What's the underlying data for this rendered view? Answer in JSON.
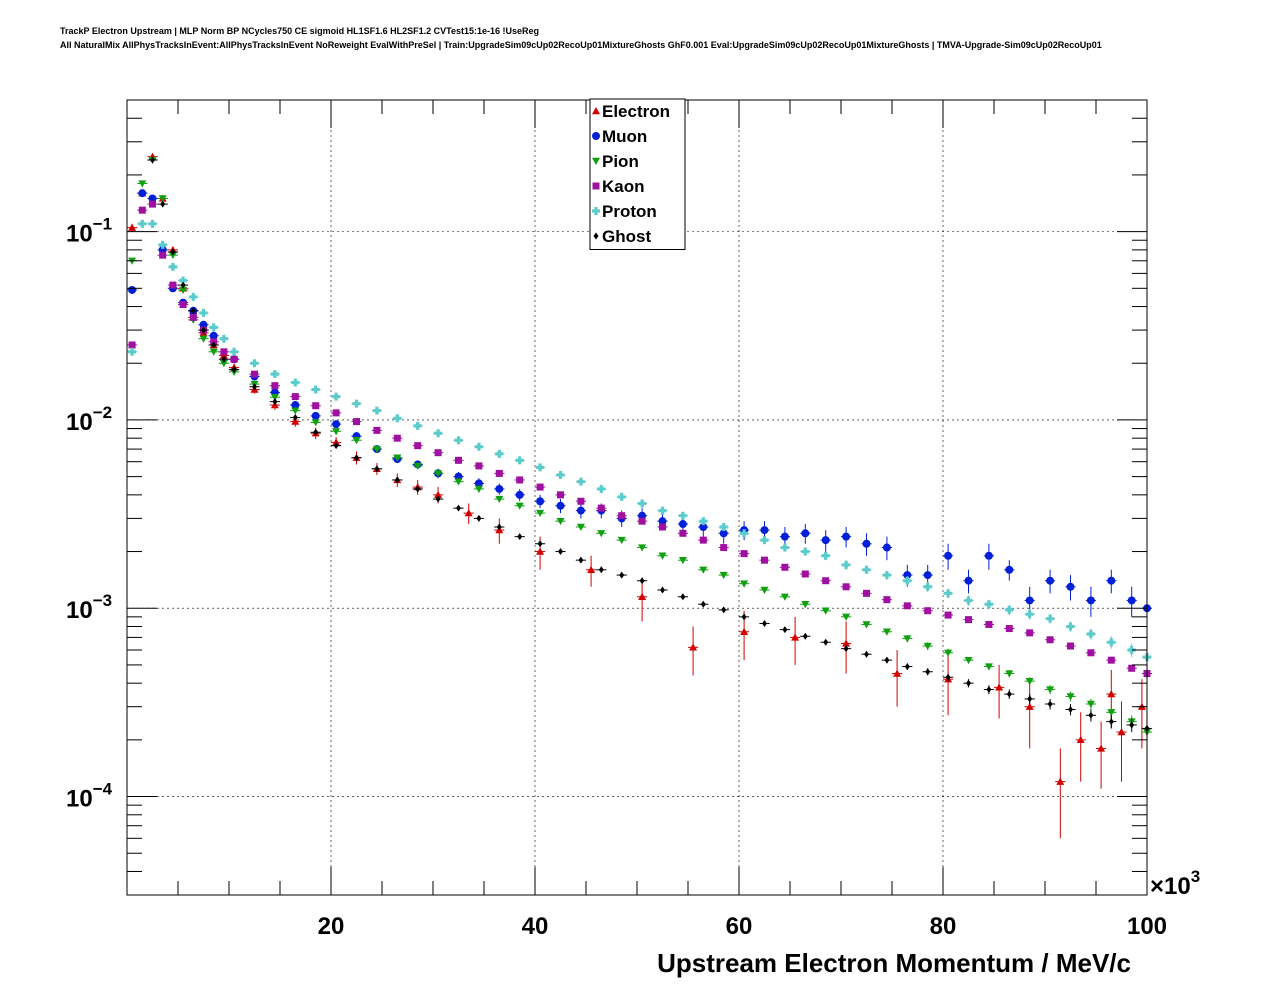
{
  "title_line_1": "TrackP Electron Upstream | MLP Norm BP NCycles750 CE sigmoid HL1SF1.6 HL2SF1.2 CVTest15:1e-16 !UseReg",
  "title_line_2": "All NaturalMix AllPhysTracksInEvent:AllPhysTracksInEvent NoReweight EvalWithPreSel | Train:UpgradeSim09cUp02RecoUp01MixtureGhosts GhF0.001 Eval:UpgradeSim09cUp02RecoUp01MixtureGhosts | TMVA-Upgrade-Sim09cUp02RecoUp01",
  "chart_data": {
    "type": "scatter",
    "xlabel": "Upstream Electron Momentum / MeV/c",
    "x_multiplier_label": "×10",
    "x_multiplier_exp": "3",
    "xlim": [
      0,
      100
    ],
    "ylim": [
      3e-05,
      0.5
    ],
    "yscale": "log",
    "grid": true,
    "legend_position": "top-center",
    "x_tick_labels": [
      "20",
      "40",
      "60",
      "80",
      "100"
    ],
    "x_ticks": [
      20,
      40,
      60,
      80,
      100
    ],
    "y_ticks": [
      {
        "value": 0.1,
        "base": "10",
        "exp": "−1"
      },
      {
        "value": 0.01,
        "base": "10",
        "exp": "−2"
      },
      {
        "value": 0.001,
        "base": "10",
        "exp": "−3"
      },
      {
        "value": 0.0001,
        "base": "10",
        "exp": "−4"
      }
    ],
    "series": [
      {
        "name": "Electron",
        "color": "#d40000",
        "marker": "triangle-up",
        "x": [
          0.5,
          1.5,
          2.5,
          3.5,
          4.5,
          5.5,
          6.5,
          7.5,
          8.5,
          9.5,
          10.5,
          12.5,
          14.5,
          16.5,
          18.5,
          20.5,
          22.5,
          24.5,
          26.5,
          28.5,
          30.5,
          33.5,
          36.5,
          40.5,
          45.5,
          50.5,
          55.5,
          60.5,
          65.5,
          70.5,
          75.5,
          80.5,
          85.5,
          88.5,
          91.5,
          93.5,
          95.5,
          96.5,
          97.5,
          99.5
        ],
        "y": [
          0.105,
          0.16,
          0.25,
          0.15,
          0.08,
          0.05,
          0.038,
          0.029,
          0.025,
          0.022,
          0.019,
          0.0145,
          0.012,
          0.0098,
          0.0085,
          0.0076,
          0.0063,
          0.0055,
          0.0048,
          0.0044,
          0.004,
          0.0032,
          0.0026,
          0.002,
          0.0016,
          0.00115,
          0.00062,
          0.00075,
          0.0007,
          0.00065,
          0.00045,
          0.00042,
          0.00038,
          0.0003,
          0.00012,
          0.0002,
          0.00018,
          0.00035,
          0.00022,
          0.0003
        ],
        "err": [
          0.005,
          0.006,
          0.01,
          0.006,
          0.003,
          0.002,
          0.0015,
          0.001,
          0.001,
          0.001,
          0.0008,
          0.0007,
          0.0007,
          0.0006,
          0.0006,
          0.0005,
          0.0005,
          0.0004,
          0.0004,
          0.0004,
          0.0004,
          0.0004,
          0.0004,
          0.0004,
          0.0003,
          0.0003,
          0.00018,
          0.00022,
          0.0002,
          0.0002,
          0.00015,
          0.00015,
          0.00012,
          0.00012,
          6e-05,
          8e-05,
          7e-05,
          0.00012,
          0.0001,
          0.00012
        ]
      },
      {
        "name": "Muon",
        "color": "#0020d8",
        "marker": "circle",
        "x": [
          0.5,
          1.5,
          2.5,
          3.5,
          4.5,
          5.5,
          6.5,
          7.5,
          8.5,
          10.5,
          12.5,
          14.5,
          16.5,
          18.5,
          20.5,
          22.5,
          24.5,
          26.5,
          28.5,
          30.5,
          32.5,
          34.5,
          36.5,
          38.5,
          40.5,
          42.5,
          44.5,
          46.5,
          48.5,
          50.5,
          52.5,
          54.5,
          56.5,
          58.5,
          60.5,
          62.5,
          64.5,
          66.5,
          68.5,
          70.5,
          72.5,
          74.5,
          76.5,
          78.5,
          80.5,
          82.5,
          84.5,
          86.5,
          88.5,
          90.5,
          92.5,
          94.5,
          96.5,
          98.5,
          100
        ],
        "y": [
          0.049,
          0.16,
          0.15,
          0.08,
          0.05,
          0.042,
          0.038,
          0.032,
          0.028,
          0.021,
          0.017,
          0.014,
          0.012,
          0.0105,
          0.0095,
          0.0082,
          0.007,
          0.0062,
          0.0058,
          0.0052,
          0.005,
          0.0046,
          0.0043,
          0.004,
          0.0037,
          0.0035,
          0.0033,
          0.0033,
          0.003,
          0.0031,
          0.0029,
          0.0028,
          0.0027,
          0.0025,
          0.0026,
          0.0026,
          0.0024,
          0.0025,
          0.0023,
          0.0024,
          0.0022,
          0.0021,
          0.0015,
          0.0015,
          0.0019,
          0.0014,
          0.0019,
          0.0016,
          0.0011,
          0.0014,
          0.0013,
          0.0011,
          0.0014,
          0.0011,
          0.001
        ],
        "err": [
          0.002,
          0.005,
          0.005,
          0.003,
          0.002,
          0.0015,
          0.0012,
          0.001,
          0.001,
          0.0008,
          0.0007,
          0.0006,
          0.0005,
          0.0005,
          0.0004,
          0.0004,
          0.0003,
          0.0003,
          0.0003,
          0.0003,
          0.0003,
          0.0003,
          0.0003,
          0.0003,
          0.0003,
          0.0003,
          0.0003,
          0.0003,
          0.0003,
          0.0003,
          0.0003,
          0.0003,
          0.0003,
          0.0003,
          0.0003,
          0.0003,
          0.0003,
          0.0003,
          0.0003,
          0.0003,
          0.0003,
          0.0003,
          0.0002,
          0.0002,
          0.0003,
          0.0002,
          0.0003,
          0.0002,
          0.0002,
          0.0002,
          0.0002,
          0.0002,
          0.0002,
          0.0002,
          0.0002
        ]
      },
      {
        "name": "Pion",
        "color": "#10a010",
        "marker": "triangle-down",
        "x": [
          0.5,
          1.5,
          2.5,
          3.5,
          4.5,
          5.5,
          6.5,
          7.5,
          8.5,
          9.5,
          10.5,
          12.5,
          14.5,
          16.5,
          18.5,
          20.5,
          22.5,
          24.5,
          26.5,
          28.5,
          30.5,
          32.5,
          34.5,
          36.5,
          38.5,
          40.5,
          42.5,
          44.5,
          46.5,
          48.5,
          50.5,
          52.5,
          54.5,
          56.5,
          58.5,
          60.5,
          62.5,
          64.5,
          66.5,
          68.5,
          70.5,
          72.5,
          74.5,
          76.5,
          78.5,
          80.5,
          82.5,
          84.5,
          86.5,
          88.5,
          90.5,
          92.5,
          94.5,
          96.5,
          98.5,
          100
        ],
        "y": [
          0.07,
          0.18,
          0.24,
          0.15,
          0.075,
          0.049,
          0.034,
          0.027,
          0.023,
          0.02,
          0.018,
          0.0155,
          0.0132,
          0.0112,
          0.0097,
          0.0087,
          0.0078,
          0.007,
          0.0063,
          0.0057,
          0.0052,
          0.0047,
          0.0043,
          0.0038,
          0.0035,
          0.0032,
          0.0029,
          0.0027,
          0.0025,
          0.0023,
          0.0021,
          0.0019,
          0.0018,
          0.0016,
          0.0015,
          0.00135,
          0.00125,
          0.00115,
          0.00105,
          0.00097,
          0.0009,
          0.00082,
          0.00075,
          0.00069,
          0.00063,
          0.00058,
          0.00053,
          0.00049,
          0.00045,
          0.00041,
          0.00037,
          0.00034,
          0.00031,
          0.00028,
          0.00025,
          0.00022
        ],
        "err": [
          0.002,
          0.004,
          0.005,
          0.003,
          0.002,
          0.001,
          0.0008,
          0.0006,
          0.0005,
          0.0004,
          0.0004,
          0.0003,
          0.0003,
          0.0002,
          0.0002,
          0.0002,
          0.0002,
          0.0001,
          0.0001,
          0.0001,
          0.0001,
          0.0001,
          0.0001,
          0.0001,
          0.0001,
          0.0001,
          0.0001,
          8e-05,
          8e-05,
          7e-05,
          7e-05,
          6e-05,
          6e-05,
          5e-05,
          5e-05,
          5e-05,
          4e-05,
          4e-05,
          4e-05,
          4e-05,
          3e-05,
          3e-05,
          3e-05,
          3e-05,
          3e-05,
          3e-05,
          2e-05,
          2e-05,
          2e-05,
          2e-05,
          2e-05,
          2e-05,
          2e-05,
          2e-05,
          2e-05,
          2e-05
        ]
      },
      {
        "name": "Kaon",
        "color": "#a010a0",
        "marker": "square",
        "x": [
          0.5,
          1.5,
          2.5,
          3.5,
          4.5,
          5.5,
          6.5,
          7.5,
          8.5,
          9.5,
          10.5,
          12.5,
          14.5,
          16.5,
          18.5,
          20.5,
          22.5,
          24.5,
          26.5,
          28.5,
          30.5,
          32.5,
          34.5,
          36.5,
          38.5,
          40.5,
          42.5,
          44.5,
          46.5,
          48.5,
          50.5,
          52.5,
          54.5,
          56.5,
          58.5,
          60.5,
          62.5,
          64.5,
          66.5,
          68.5,
          70.5,
          72.5,
          74.5,
          76.5,
          78.5,
          80.5,
          82.5,
          84.5,
          86.5,
          88.5,
          90.5,
          92.5,
          94.5,
          96.5,
          98.5,
          100
        ],
        "y": [
          0.025,
          0.13,
          0.14,
          0.075,
          0.052,
          0.041,
          0.035,
          0.03,
          0.026,
          0.023,
          0.021,
          0.0175,
          0.0152,
          0.0133,
          0.0119,
          0.0109,
          0.0098,
          0.0088,
          0.008,
          0.0073,
          0.0067,
          0.0061,
          0.0057,
          0.0052,
          0.0048,
          0.0044,
          0.004,
          0.0037,
          0.0034,
          0.0031,
          0.0029,
          0.0027,
          0.0025,
          0.0023,
          0.0021,
          0.00195,
          0.0018,
          0.00165,
          0.00152,
          0.0014,
          0.0013,
          0.0012,
          0.00111,
          0.00103,
          0.00097,
          0.00092,
          0.00087,
          0.00082,
          0.00078,
          0.00074,
          0.00068,
          0.00063,
          0.00058,
          0.00053,
          0.00048,
          0.00045
        ],
        "err": [
          0.001,
          0.003,
          0.003,
          0.002,
          0.001,
          0.0008,
          0.0006,
          0.0005,
          0.0004,
          0.0004,
          0.0003,
          0.0003,
          0.0002,
          0.0002,
          0.0002,
          0.0002,
          0.0001,
          0.0001,
          0.0001,
          0.0001,
          0.0001,
          0.0001,
          0.0001,
          0.0001,
          0.0001,
          8e-05,
          8e-05,
          7e-05,
          6e-05,
          6e-05,
          5e-05,
          5e-05,
          5e-05,
          4e-05,
          4e-05,
          4e-05,
          4e-05,
          3e-05,
          3e-05,
          3e-05,
          3e-05,
          3e-05,
          3e-05,
          2e-05,
          2e-05,
          2e-05,
          2e-05,
          2e-05,
          2e-05,
          2e-05,
          2e-05,
          2e-05,
          2e-05,
          2e-05,
          2e-05,
          2e-05
        ]
      },
      {
        "name": "Proton",
        "color": "#5ccbcb",
        "marker": "cross",
        "x": [
          0.5,
          1.5,
          2.5,
          3.5,
          4.5,
          5.5,
          6.5,
          7.5,
          8.5,
          9.5,
          10.5,
          12.5,
          14.5,
          16.5,
          18.5,
          20.5,
          22.5,
          24.5,
          26.5,
          28.5,
          30.5,
          32.5,
          34.5,
          36.5,
          38.5,
          40.5,
          42.5,
          44.5,
          46.5,
          48.5,
          50.5,
          52.5,
          54.5,
          56.5,
          58.5,
          60.5,
          62.5,
          64.5,
          66.5,
          68.5,
          70.5,
          72.5,
          74.5,
          76.5,
          78.5,
          80.5,
          82.5,
          84.5,
          86.5,
          88.5,
          90.5,
          92.5,
          94.5,
          96.5,
          98.5,
          100
        ],
        "y": [
          0.023,
          0.11,
          0.11,
          0.085,
          0.065,
          0.055,
          0.045,
          0.037,
          0.031,
          0.027,
          0.023,
          0.02,
          0.0175,
          0.0158,
          0.0145,
          0.0133,
          0.0122,
          0.0112,
          0.0102,
          0.0093,
          0.0085,
          0.0078,
          0.0072,
          0.0066,
          0.0061,
          0.0056,
          0.0051,
          0.0047,
          0.0043,
          0.0039,
          0.0036,
          0.0033,
          0.0031,
          0.0029,
          0.0027,
          0.0025,
          0.0023,
          0.0021,
          0.002,
          0.0019,
          0.0017,
          0.0016,
          0.0015,
          0.0014,
          0.0013,
          0.0012,
          0.0011,
          0.00105,
          0.00098,
          0.00093,
          0.00088,
          0.0008,
          0.00073,
          0.00066,
          0.0006,
          0.00055
        ],
        "err": [
          0.001,
          0.003,
          0.003,
          0.002,
          0.001,
          0.0008,
          0.0006,
          0.0005,
          0.0004,
          0.0004,
          0.0003,
          0.0003,
          0.0002,
          0.0002,
          0.0002,
          0.0002,
          0.0001,
          0.0001,
          0.0001,
          0.0001,
          0.0001,
          0.0001,
          0.0001,
          0.0001,
          0.0001,
          0.0001,
          0.0001,
          0.0001,
          0.0001,
          0.0001,
          0.0001,
          0.0001,
          0.0001,
          0.0001,
          0.0001,
          0.0001,
          0.0001,
          0.0001,
          0.0001,
          0.0001,
          0.0001,
          8e-05,
          8e-05,
          8e-05,
          8e-05,
          7e-05,
          7e-05,
          6e-05,
          6e-05,
          6e-05,
          5e-05,
          5e-05,
          5e-05,
          5e-05,
          5e-05,
          5e-05
        ]
      },
      {
        "name": "Ghost",
        "color": "#000000",
        "marker": "diamond",
        "x": [
          2.5,
          3.5,
          4.5,
          5.5,
          6.5,
          7.5,
          8.5,
          9.5,
          10.5,
          12.5,
          14.5,
          16.5,
          18.5,
          20.5,
          22.5,
          24.5,
          26.5,
          28.5,
          30.5,
          32.5,
          34.5,
          36.5,
          38.5,
          40.5,
          42.5,
          44.5,
          46.5,
          48.5,
          50.5,
          52.5,
          54.5,
          56.5,
          58.5,
          60.5,
          62.5,
          64.5,
          66.5,
          68.5,
          70.5,
          72.5,
          74.5,
          76.5,
          78.5,
          80.5,
          82.5,
          84.5,
          86.5,
          88.5,
          90.5,
          92.5,
          94.5,
          96.5,
          98.5,
          100
        ],
        "y": [
          0.24,
          0.14,
          0.078,
          0.052,
          0.038,
          0.03,
          0.025,
          0.021,
          0.0185,
          0.015,
          0.0125,
          0.0103,
          0.0086,
          0.0073,
          0.0063,
          0.0055,
          0.0048,
          0.0043,
          0.0038,
          0.0034,
          0.003,
          0.0027,
          0.0024,
          0.0022,
          0.002,
          0.0018,
          0.0016,
          0.0015,
          0.0014,
          0.00125,
          0.00115,
          0.00105,
          0.00098,
          0.0009,
          0.00083,
          0.00077,
          0.00071,
          0.00066,
          0.00061,
          0.00057,
          0.00053,
          0.00049,
          0.00046,
          0.00043,
          0.0004,
          0.00037,
          0.00035,
          0.00033,
          0.00031,
          0.00029,
          0.00027,
          0.00025,
          0.00024,
          0.00023
        ],
        "err": [
          0.004,
          0.003,
          0.002,
          0.001,
          0.0008,
          0.0006,
          0.0005,
          0.0004,
          0.0003,
          0.0003,
          0.0002,
          0.0002,
          0.0002,
          0.0001,
          0.0001,
          0.0001,
          0.0001,
          0.0001,
          8e-05,
          7e-05,
          6e-05,
          6e-05,
          5e-05,
          5e-05,
          4e-05,
          4e-05,
          4e-05,
          3e-05,
          3e-05,
          3e-05,
          3e-05,
          3e-05,
          2e-05,
          2e-05,
          2e-05,
          2e-05,
          2e-05,
          2e-05,
          2e-05,
          2e-05,
          2e-05,
          2e-05,
          2e-05,
          2e-05,
          2e-05,
          2e-05,
          2e-05,
          2e-05,
          2e-05,
          2e-05,
          2e-05,
          2e-05,
          2e-05,
          2e-05
        ]
      }
    ]
  }
}
